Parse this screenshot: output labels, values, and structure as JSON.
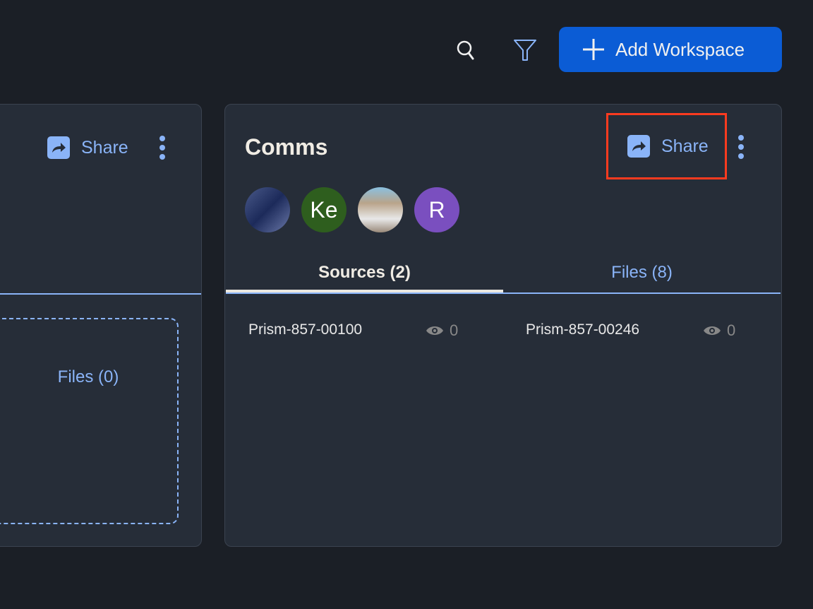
{
  "toolbar": {
    "add_workspace_label": "Add Workspace",
    "search_icon": "search-icon",
    "filter_icon": "filter-icon"
  },
  "left_card": {
    "share_label": "Share",
    "files_tab": "Files (0)"
  },
  "comms_card": {
    "title": "Comms",
    "share_label": "Share",
    "avatars": [
      {
        "type": "image"
      },
      {
        "initials": "Ke",
        "color": "#2e5e1e"
      },
      {
        "type": "image"
      },
      {
        "initials": "R",
        "color": "#7a4fbf"
      }
    ],
    "tabs": [
      {
        "label": "Sources (2)",
        "active": true
      },
      {
        "label": "Files (8)",
        "active": false
      }
    ],
    "sources": [
      {
        "name": "Prism-857-00100",
        "views": "0"
      },
      {
        "name": "Prism-857-00246",
        "views": "0"
      }
    ]
  },
  "colors": {
    "accent": "#0b5cd5",
    "link": "#8ab4f8",
    "highlight": "#ff3b1f"
  }
}
